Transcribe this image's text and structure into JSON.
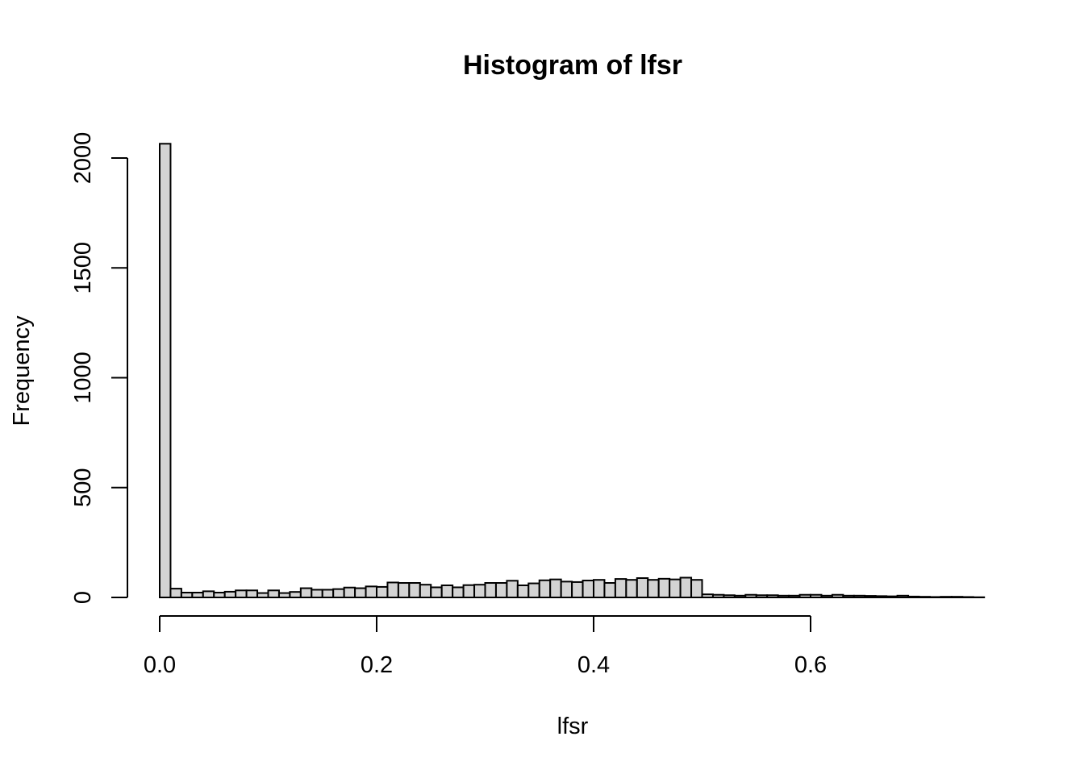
{
  "chart_data": {
    "type": "bar",
    "title": "Histogram of lfsr",
    "xlabel": "lfsr",
    "ylabel": "Frequency",
    "bin_width": 0.01,
    "x_start": 0.0,
    "values": [
      2065,
      40,
      22,
      22,
      28,
      22,
      26,
      32,
      32,
      20,
      32,
      20,
      25,
      42,
      35,
      35,
      38,
      45,
      42,
      50,
      48,
      68,
      66,
      66,
      58,
      46,
      55,
      46,
      56,
      58,
      66,
      66,
      76,
      55,
      64,
      78,
      82,
      72,
      70,
      77,
      80,
      66,
      84,
      80,
      88,
      80,
      85,
      82,
      90,
      80,
      14,
      12,
      10,
      8,
      12,
      10,
      10,
      8,
      8,
      12,
      12,
      8,
      12,
      8,
      8,
      7,
      6,
      5,
      8,
      4,
      3,
      2,
      3,
      3,
      2,
      1
    ],
    "xlim": [
      0,
      0.76
    ],
    "ylim": [
      0,
      2000
    ],
    "x_ticks": [
      {
        "value": 0.0,
        "label": "0.0"
      },
      {
        "value": 0.2,
        "label": "0.2"
      },
      {
        "value": 0.4,
        "label": "0.4"
      },
      {
        "value": 0.6,
        "label": "0.6"
      }
    ],
    "y_ticks": [
      {
        "value": 0,
        "label": "0"
      },
      {
        "value": 500,
        "label": "500"
      },
      {
        "value": 1000,
        "label": "1000"
      },
      {
        "value": 1500,
        "label": "1500"
      },
      {
        "value": 2000,
        "label": "2000"
      }
    ],
    "colors": {
      "bar_fill": "#d3d3d3",
      "bar_stroke": "#000000"
    }
  }
}
